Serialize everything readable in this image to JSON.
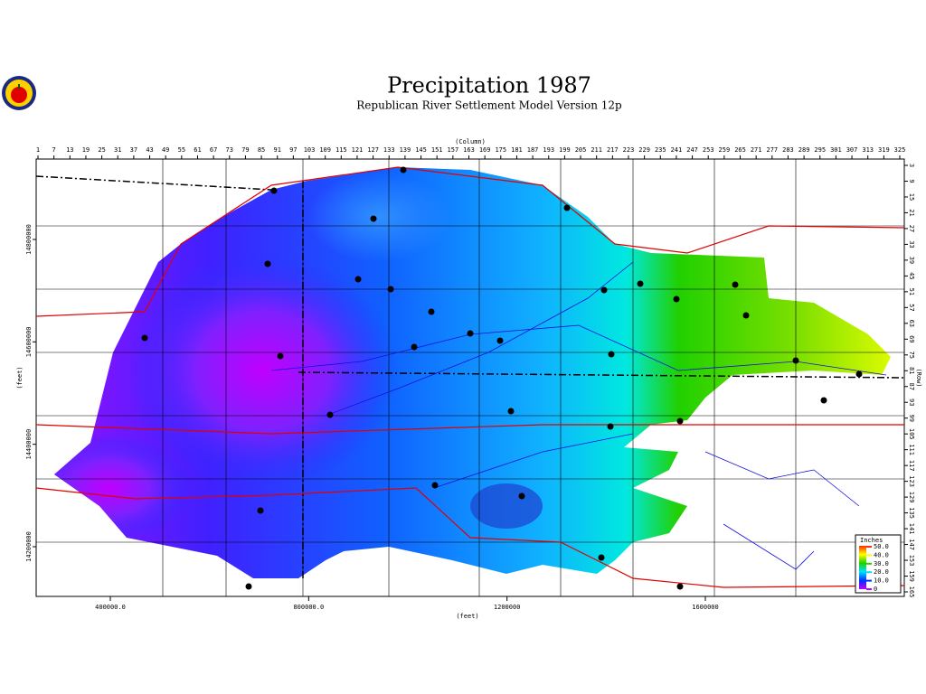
{
  "header": {
    "title": "Precipitation 1987",
    "subtitle": "Republican River Settlement Model Version 12p"
  },
  "column_axis": {
    "label": "(Column)",
    "ticks": [
      1,
      7,
      13,
      19,
      25,
      31,
      37,
      43,
      49,
      55,
      61,
      67,
      73,
      79,
      85,
      91,
      97,
      103,
      109,
      115,
      121,
      127,
      133,
      139,
      145,
      151,
      157,
      163,
      169,
      175,
      181,
      187,
      193,
      199,
      205,
      211,
      217,
      223,
      229,
      235,
      241,
      247,
      253,
      259,
      265,
      271,
      277,
      283,
      289,
      295,
      301,
      307,
      313,
      319,
      325
    ]
  },
  "row_axis": {
    "label": "(Row)",
    "ticks": [
      3,
      9,
      15,
      21,
      27,
      33,
      39,
      45,
      51,
      57,
      63,
      69,
      75,
      81,
      87,
      93,
      99,
      105,
      111,
      117,
      123,
      129,
      135,
      141,
      147,
      153,
      159,
      165
    ]
  },
  "easting_axis": {
    "label": "(feet)",
    "ticks": [
      {
        "value": 400000,
        "label": "400000.0"
      },
      {
        "value": 800000,
        "label": "800000.0"
      },
      1200000,
      1600000
    ]
  },
  "northing_axis": {
    "label": "(feet)",
    "ticks": [
      14800000,
      14600000,
      14400000,
      14200000
    ]
  },
  "legend": {
    "title": "Inches",
    "items": [
      {
        "label": "50.0",
        "color": "#ff3000"
      },
      {
        "label": "40.0",
        "color": "#ffff00"
      },
      {
        "label": "30.0",
        "color": "#20d000"
      },
      {
        "label": "20.0",
        "color": "#00e0ff"
      },
      {
        "label": "10.0",
        "color": "#0030ff"
      },
      {
        "label": "0",
        "color": "#c000ff"
      }
    ]
  }
}
